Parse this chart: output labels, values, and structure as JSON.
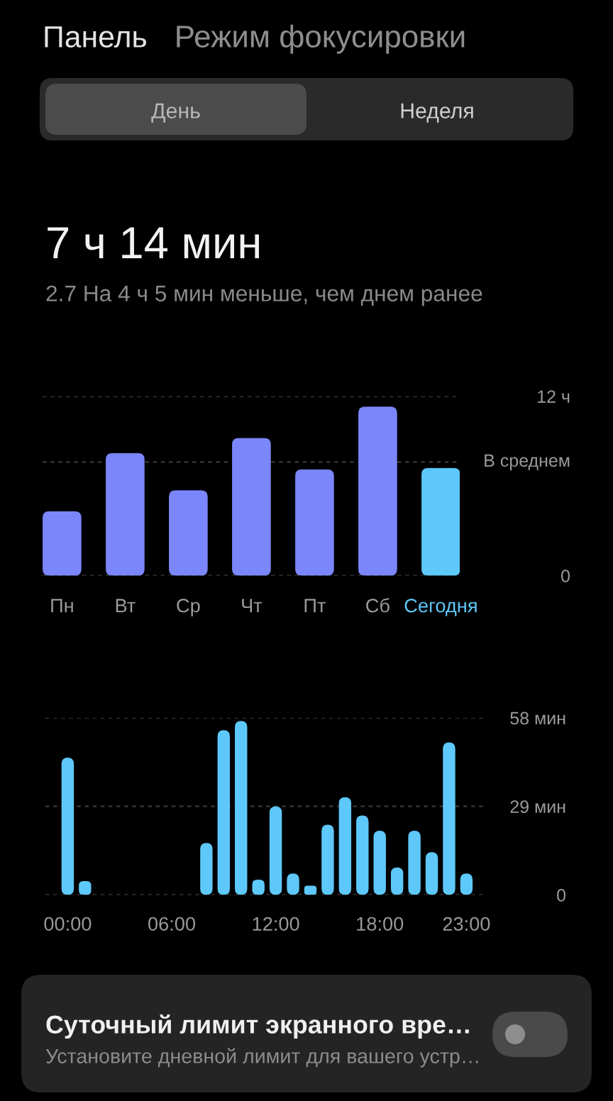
{
  "chart_data": [
    {
      "type": "other",
      "title": "Панель",
      "subtitle": "Режим фокусировки",
      "annotations": [
        "День",
        "Неделя"
      ]
    },
    {
      "type": "bar",
      "title": "7 ч 14 мин",
      "subtitle": "2.7 На 4 ч 5 мин меньше, чем днем ранее",
      "categories": [
        "Пн",
        "Вт",
        "Ср",
        "Чт",
        "Пт",
        "Сб",
        "Сегодня"
      ],
      "values": [
        4.3,
        8.2,
        5.7,
        9.2,
        7.1,
        11.3,
        7.2
      ],
      "colors": [
        "#7b86fb",
        "#7b86fb",
        "#7b86fb",
        "#7b86fb",
        "#7b86fb",
        "#7b86fb",
        "#5ec8fa"
      ],
      "ylim": [
        0,
        12
      ],
      "yticks": [
        0,
        {
          "value": 12,
          "label": "12 ч"
        }
      ],
      "ref_lines": [
        {
          "axis": "y",
          "value": 7.6,
          "label": "В среднем",
          "line_style": "dashed"
        }
      ],
      "grid": "y"
    },
    {
      "type": "bar",
      "categories": [
        "00:00",
        null,
        null,
        null,
        null,
        null,
        "06:00",
        null,
        null,
        null,
        null,
        null,
        "12:00",
        null,
        null,
        null,
        null,
        null,
        "18:00",
        null,
        null,
        null,
        null,
        "23:00"
      ],
      "values": [
        45,
        4.5,
        null,
        null,
        null,
        null,
        null,
        null,
        17,
        54,
        57,
        5,
        29,
        7,
        3,
        23,
        32,
        26,
        21,
        9,
        21,
        14,
        50,
        7
      ],
      "color": "#5ec8fa",
      "ylim": [
        0,
        58
      ],
      "yticks": [
        0,
        {
          "value": 29,
          "label": "29 мин"
        },
        {
          "value": 58,
          "label": "58 мин"
        }
      ],
      "grid": "y"
    },
    {
      "type": "other",
      "title": "Суточный лимит экранного вре…",
      "subtitle": "Установите дневной лимит для вашего устр…"
    }
  ]
}
